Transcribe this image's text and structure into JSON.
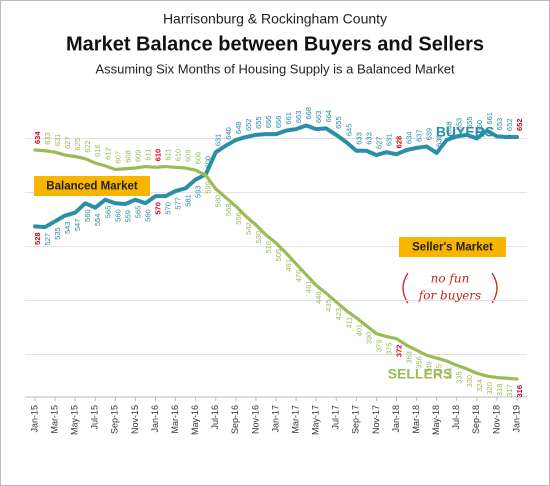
{
  "chart_data": {
    "type": "line",
    "title": "Market Balance between Buyers and Sellers",
    "supertitle": "Harrisonburg & Rockingham County",
    "subtitle": "Assuming Six Months of Housing Supply is a Balanced Market",
    "categories": [
      "Jan-15",
      null,
      "Mar-15",
      null,
      "May-15",
      null,
      "Jul-15",
      null,
      "Sep-15",
      null,
      "Nov-15",
      null,
      "Jan-16",
      null,
      "Mar-16",
      null,
      "May-16",
      null,
      "Jul-16",
      null,
      "Sep-16",
      null,
      "Nov-16",
      null,
      "Jan-17",
      null,
      "Mar-17",
      null,
      "May-17",
      null,
      "Jul-17",
      null,
      "Sep-17",
      null,
      "Nov-17",
      null,
      "Jan-18",
      null,
      "Mar-18",
      null,
      "May-18",
      null,
      "Jul-18",
      null,
      "Sep-18",
      null,
      "Nov-18",
      null,
      "Jan-19"
    ],
    "series": [
      {
        "name": "BUYERS",
        "color": "#2b8ea8",
        "values": [
          528,
          527,
          535,
          543,
          547,
          560,
          554,
          565,
          560,
          559,
          565,
          560,
          570,
          570,
          577,
          581,
          593,
          600,
          631,
          640,
          648,
          652,
          655,
          656,
          656,
          661,
          663,
          668,
          663,
          664,
          655,
          645,
          633,
          633,
          627,
          631,
          628,
          634,
          637,
          639,
          630,
          648,
          653,
          655,
          650,
          661,
          653,
          652,
          652
        ]
      },
      {
        "name": "SELLERS",
        "color": "#9bbb59",
        "values": [
          634,
          633,
          631,
          627,
          625,
          622,
          616,
          612,
          607,
          608,
          609,
          611,
          610,
          611,
          610,
          609,
          606,
          599,
          580,
          568,
          556,
          542,
          530,
          516,
          505,
          491,
          476,
          461,
          446,
          435,
          423,
          411,
          401,
          390,
          379,
          375,
          372,
          363,
          356,
          349,
          345,
          341,
          335,
          330,
          324,
          320,
          318,
          317,
          316
        ]
      }
    ],
    "highlight_indices": [
      0,
      12,
      36,
      48
    ],
    "highlight_color": "#d0021b",
    "ylim": [
      260,
      700
    ],
    "yticks": [
      350,
      425,
      500,
      575,
      650
    ],
    "grid": true,
    "annotations": {
      "balanced": "Balanced Market",
      "sellers_market": "Seller's Market",
      "note_line1": "no fun",
      "note_line2": "for buyers"
    },
    "annotation_color": "#f7b500"
  }
}
